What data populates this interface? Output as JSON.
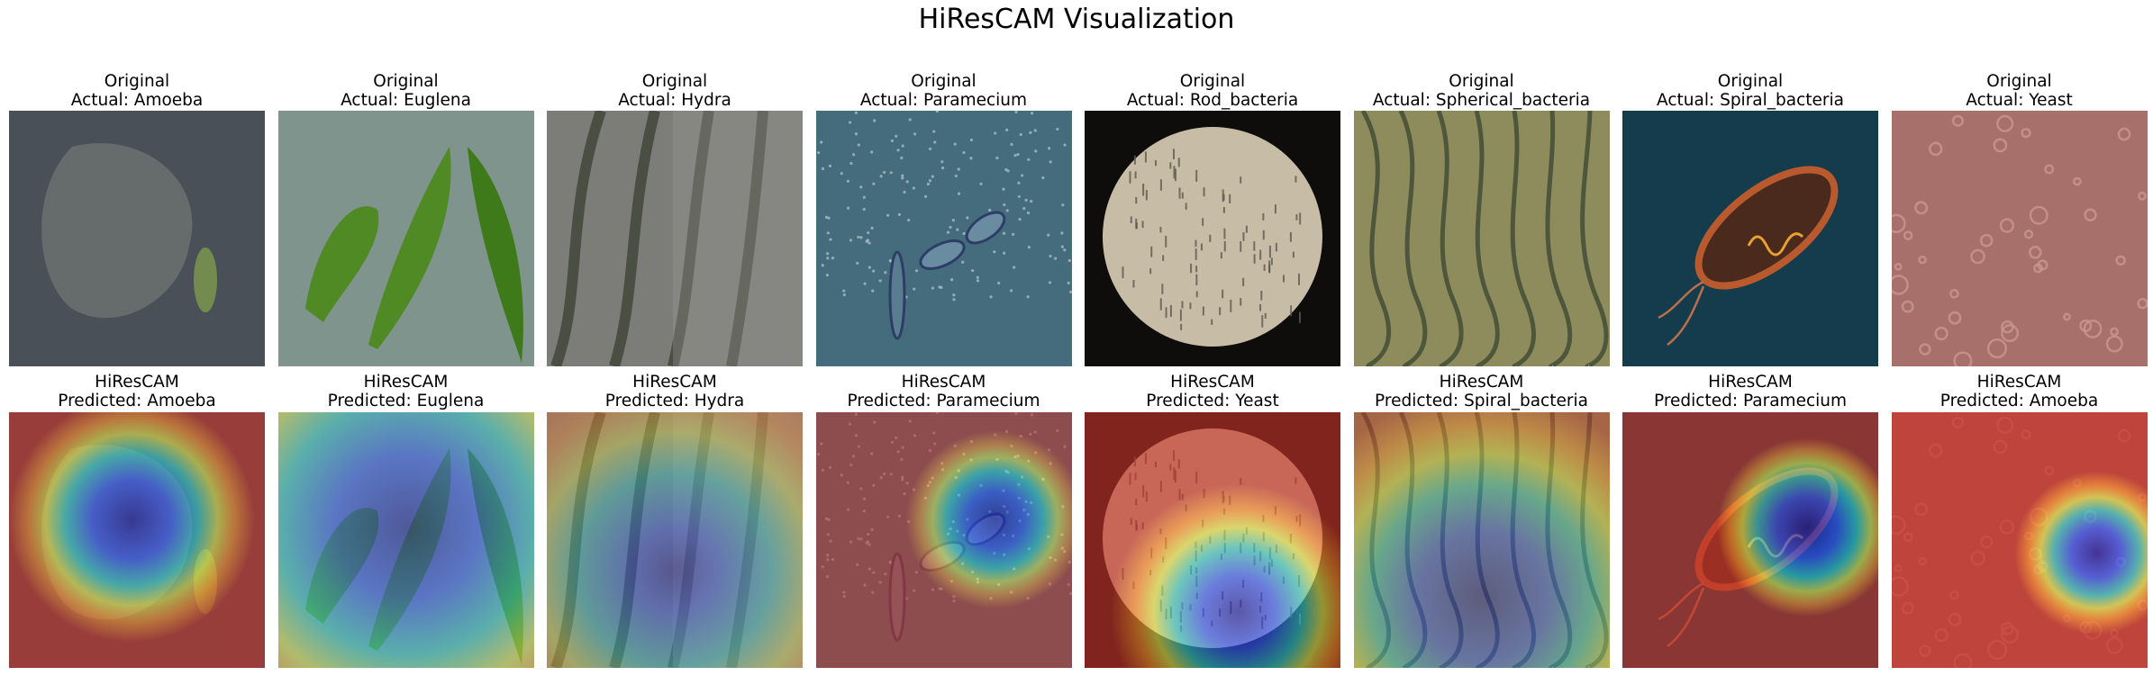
{
  "figure": {
    "title": "HiResCAM Visualization"
  },
  "row_original": {
    "label": "Original",
    "prefix": "Actual: "
  },
  "row_cam": {
    "label": "HiResCAM",
    "prefix": "Predicted: "
  },
  "samples": [
    {
      "actual": "Amoeba",
      "predicted": "Amoeba",
      "bg": "#4a5058",
      "fg": "#8a8e84",
      "kind": "blob",
      "heat": [
        0.48,
        0.42,
        0.48,
        0.32,
        0.62
      ]
    },
    {
      "actual": "Euglena",
      "predicted": "Euglena",
      "bg": "#7f948d",
      "fg": "#4f8a24",
      "kind": "cells",
      "heat": [
        0.5,
        0.45,
        1.0,
        0.28,
        0.48
      ]
    },
    {
      "actual": "Hydra",
      "predicted": "Hydra",
      "bg": "#7c7c78",
      "fg": "#3e4236",
      "kind": "strands",
      "heat": [
        0.5,
        0.62,
        1.0,
        0.16,
        0.38
      ]
    },
    {
      "actual": "Paramecium",
      "predicted": "Paramecium",
      "bg": "#456c7c",
      "fg": "#b4c8d0",
      "kind": "dots",
      "heat": [
        0.7,
        0.42,
        0.35,
        0.32,
        0.55
      ]
    },
    {
      "actual": "Rod_bacteria",
      "predicted": "Yeast",
      "bg": "#0e0d0c",
      "fg": "#c7bca6",
      "kind": "circle",
      "heat": [
        0.6,
        0.78,
        0.5,
        0.28,
        0.62
      ]
    },
    {
      "actual": "Spherical_bacteria",
      "predicted": "Spiral_bacteria",
      "bg": "#8e8c5c",
      "fg": "#3e4a34",
      "kind": "spirals",
      "heat": [
        0.5,
        0.72,
        0.8,
        0.32,
        0.42
      ]
    },
    {
      "actual": "Spiral_bacteria",
      "predicted": "Paramecium",
      "bg": "#143c4c",
      "fg": "#b85a2e",
      "kind": "bacterium",
      "heat": [
        0.72,
        0.45,
        0.35,
        0.34,
        0.65
      ]
    },
    {
      "actual": "Yeast",
      "predicted": "Amoeba",
      "bg": "#a8706a",
      "fg": "#c8988e",
      "kind": "bubbles",
      "heat": [
        0.8,
        0.55,
        0.32,
        0.3,
        0.7
      ]
    }
  ]
}
